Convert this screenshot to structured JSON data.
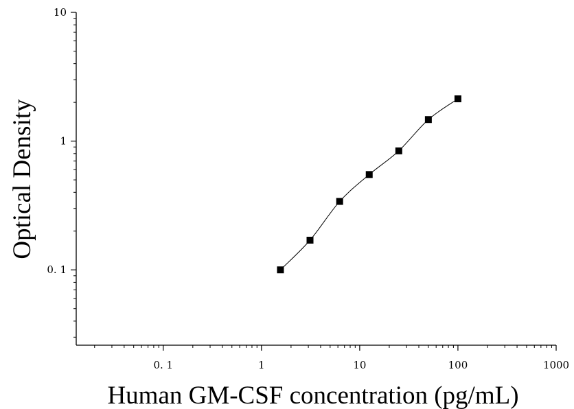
{
  "chart_data": {
    "type": "scatter",
    "xscale": "log",
    "yscale": "log",
    "xlabel": "Human GM-CSF concentration (pg/mL)",
    "ylabel": "Optical Density",
    "xlim": [
      0.013,
      1000
    ],
    "ylim": [
      0.026,
      10
    ],
    "xticks": [
      {
        "value": 0.1,
        "label": "0. 1"
      },
      {
        "value": 1,
        "label": "1"
      },
      {
        "value": 10,
        "label": "10"
      },
      {
        "value": 100,
        "label": "100"
      },
      {
        "value": 1000,
        "label": "1000"
      }
    ],
    "yticks": [
      {
        "value": 0.1,
        "label": "0. 1"
      },
      {
        "value": 1,
        "label": "1"
      },
      {
        "value": 10,
        "label": "10"
      }
    ],
    "grid": false,
    "marker": "square",
    "color": "#000000",
    "points": [
      {
        "x": 1.56,
        "y": 0.1
      },
      {
        "x": 3.12,
        "y": 0.17
      },
      {
        "x": 6.25,
        "y": 0.34
      },
      {
        "x": 12.5,
        "y": 0.55
      },
      {
        "x": 25,
        "y": 0.84
      },
      {
        "x": 50,
        "y": 1.47
      },
      {
        "x": 100,
        "y": 2.13
      }
    ],
    "fit_curve": true
  }
}
